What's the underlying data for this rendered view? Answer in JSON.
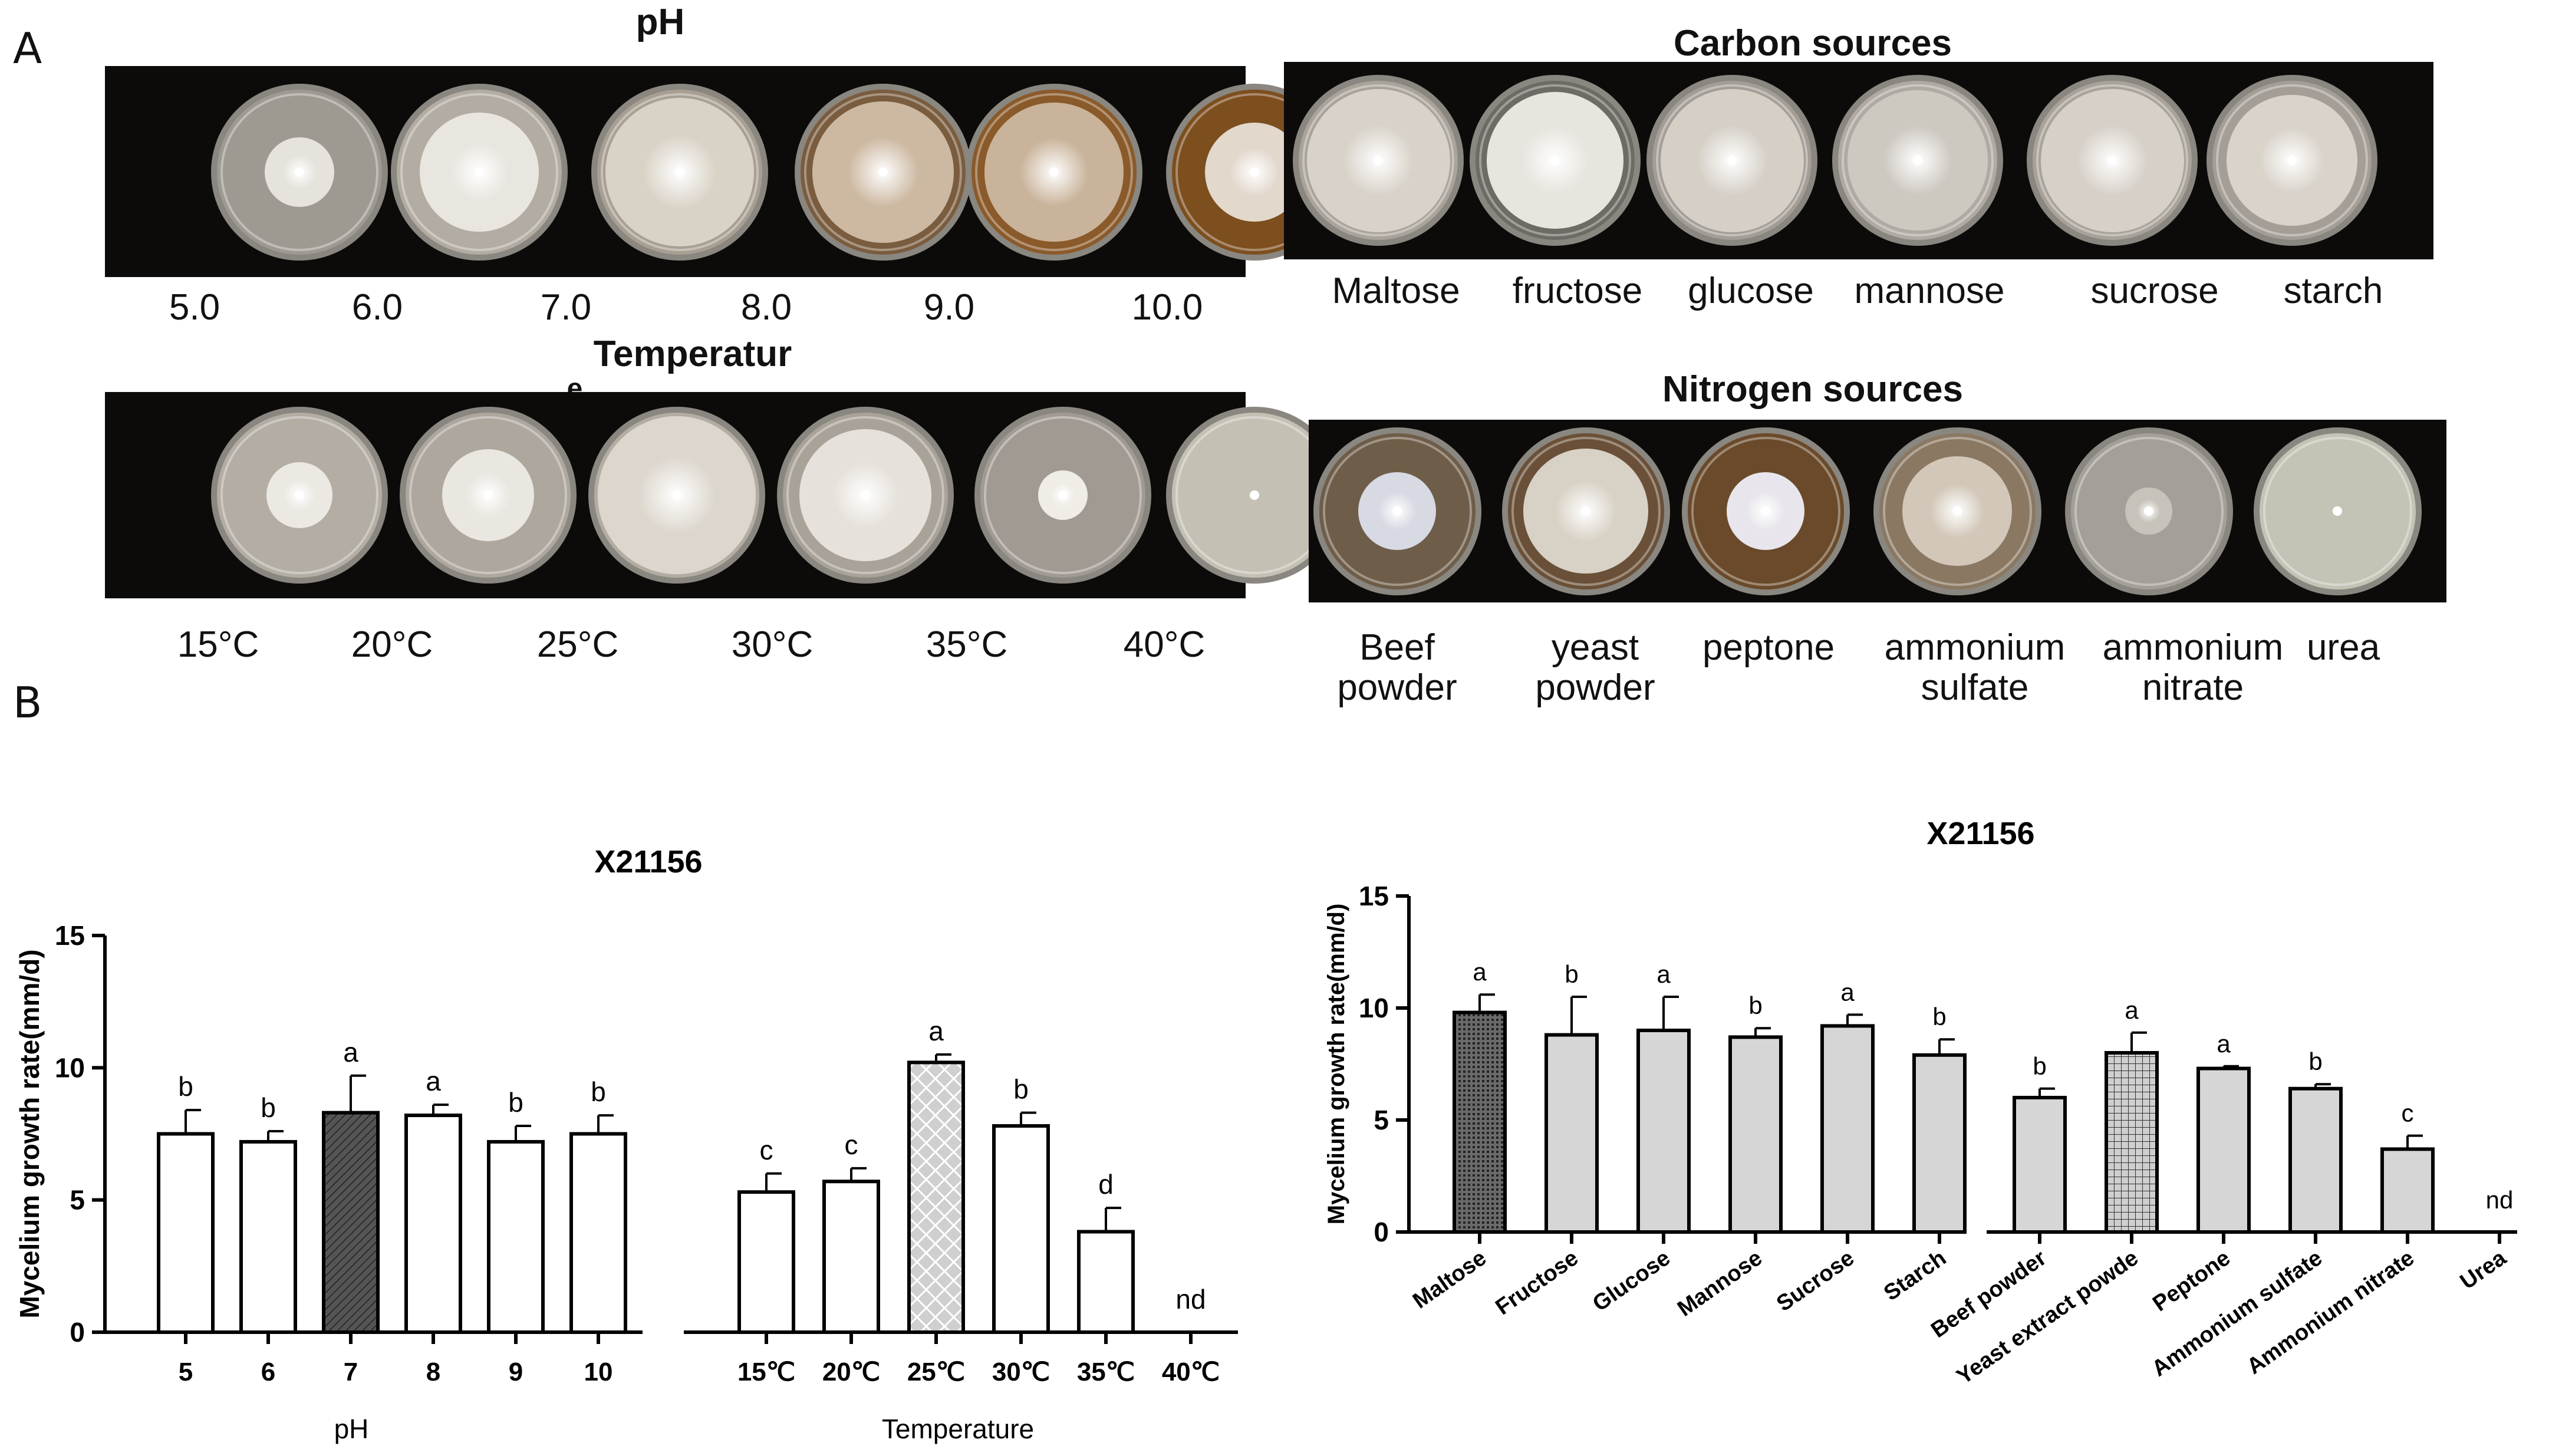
{
  "panel_labels": {
    "a": "A",
    "b": "B"
  },
  "photo_sections": {
    "ph": {
      "title": "pH",
      "labels": [
        "5.0",
        "6.0",
        "7.0",
        "8.0",
        "9.0",
        "10.0"
      ],
      "medium_colors": [
        "#9e9a92",
        "#b3aca2",
        "#a89f92",
        "#7a5c3e",
        "#8a5a2a",
        "#7d4e1e"
      ],
      "colony_colors": [
        "#e6e2dc",
        "#e9e5df",
        "#d9d2c6",
        "#cdb9a2",
        "#c9b39a",
        "#e2d8cc"
      ],
      "colony_fraction": [
        0.42,
        0.72,
        0.9,
        0.86,
        0.84,
        0.6
      ]
    },
    "temperature": {
      "title": "Temperatur",
      "title_overflow": "e",
      "labels": [
        "15°C",
        "20°C",
        "25°C",
        "30°C",
        "35°C",
        "40°C"
      ],
      "medium_colors": [
        "#b3ada4",
        "#aea79e",
        "#b2aca3",
        "#a9a298",
        "#a19a92",
        "#c4c1b4"
      ],
      "colony_colors": [
        "#ece8e2",
        "#eae6e0",
        "#dcd6cc",
        "#e6e1da",
        "#f0ece6",
        "#ffffff"
      ],
      "colony_fraction": [
        0.4,
        0.56,
        0.96,
        0.8,
        0.3,
        0.06
      ]
    },
    "carbon": {
      "title": "Carbon sources",
      "labels": [
        "Maltose",
        "fructose",
        "glucose",
        "mannose",
        "sucrose",
        "starch"
      ],
      "medium_colors": [
        "#aaa39a",
        "#6e6a64",
        "#a39d95",
        "#b0aaa2",
        "#a8a299",
        "#a49e96"
      ],
      "colony_colors": [
        "#d8d2c8",
        "#e8e4de",
        "#d5cfc6",
        "#cdc8c0",
        "#d6d0c7",
        "#d9d3ca"
      ],
      "colony_fraction": [
        0.9,
        0.86,
        0.9,
        0.88,
        0.9,
        0.82
      ]
    },
    "nitrogen": {
      "title": "Nitrogen sources",
      "labels": [
        "Beef\npowder",
        "yeast\npowder",
        "peptone",
        "ammonium\nsulfate",
        "ammonium\nnitrate",
        "urea"
      ],
      "medium_colors": [
        "#6e5d48",
        "#6a5038",
        "#6a4a2a",
        "#8a7862",
        "#a49f98",
        "#c3c4b6"
      ],
      "colony_colors": [
        "#d7d9e3",
        "#d8d1c5",
        "#e8e6ec",
        "#d2c7b8",
        "#c7c2ba",
        "#ffffff"
      ],
      "colony_fraction": [
        0.5,
        0.8,
        0.5,
        0.7,
        0.3,
        0.06
      ]
    }
  },
  "chart_data": [
    {
      "type": "bar",
      "title": "X21156",
      "ylabel": "Mycelium growth rate(mm/d)",
      "ylim": [
        0,
        15
      ],
      "yticks": [
        0,
        5,
        10,
        15
      ],
      "groups": [
        {
          "name": "pH",
          "categories": [
            "5",
            "6",
            "7",
            "8",
            "9",
            "10"
          ],
          "values": [
            7.5,
            7.2,
            8.3,
            8.2,
            7.2,
            7.5
          ],
          "errors": [
            0.9,
            0.4,
            1.4,
            0.4,
            0.6,
            0.7
          ],
          "letters": [
            "b",
            "b",
            "a",
            "a",
            "b",
            "b"
          ],
          "fills": [
            "white",
            "white",
            "dark-hatch",
            "white",
            "white",
            "white"
          ]
        },
        {
          "name": "Temperature",
          "categories": [
            "15℃",
            "20℃",
            "25℃",
            "30℃",
            "35℃",
            "40℃"
          ],
          "values": [
            5.3,
            5.7,
            10.2,
            7.8,
            3.8,
            0
          ],
          "errors": [
            0.7,
            0.5,
            0.3,
            0.5,
            0.9,
            0
          ],
          "letters": [
            "c",
            "c",
            "a",
            "b",
            "d",
            "nd"
          ],
          "fills": [
            "white",
            "white",
            "gray-crosshatch",
            "white",
            "white",
            "none"
          ]
        }
      ]
    },
    {
      "type": "bar",
      "title": "X21156",
      "ylabel": "Mycelium growth rate(mm/d)",
      "ylim": [
        0,
        15
      ],
      "yticks": [
        0,
        5,
        10,
        15
      ],
      "groups": [
        {
          "name": "",
          "categories": [
            "Maltose",
            "Fructose",
            "Glucose",
            "Mannose",
            "Sucrose",
            "Starch"
          ],
          "values": [
            9.8,
            8.8,
            9.0,
            8.7,
            9.2,
            7.9
          ],
          "errors": [
            0.8,
            1.7,
            1.5,
            0.4,
            0.5,
            0.7
          ],
          "letters": [
            "a",
            "b",
            "a",
            "b",
            "a",
            "b"
          ],
          "fills": [
            "dark-grid",
            "gray",
            "gray",
            "gray",
            "gray",
            "gray"
          ]
        },
        {
          "name": "",
          "categories": [
            "Beef powder",
            "Yeast extract powde",
            "Peptone",
            "Ammonium sulfate",
            "Ammonium nitrate",
            "Urea"
          ],
          "values": [
            6.0,
            8.0,
            7.3,
            6.4,
            3.7,
            0
          ],
          "errors": [
            0.4,
            0.9,
            0.1,
            0.2,
            0.6,
            0
          ],
          "letters": [
            "b",
            "a",
            "a",
            "b",
            "c",
            "nd"
          ],
          "fills": [
            "gray",
            "gray-grid",
            "gray",
            "gray",
            "gray",
            "none"
          ]
        }
      ]
    }
  ],
  "colors": {
    "bar_gray": "#d6d6d6",
    "bar_white": "#ffffff",
    "bar_dark": "#555555",
    "axis": "#000000"
  }
}
